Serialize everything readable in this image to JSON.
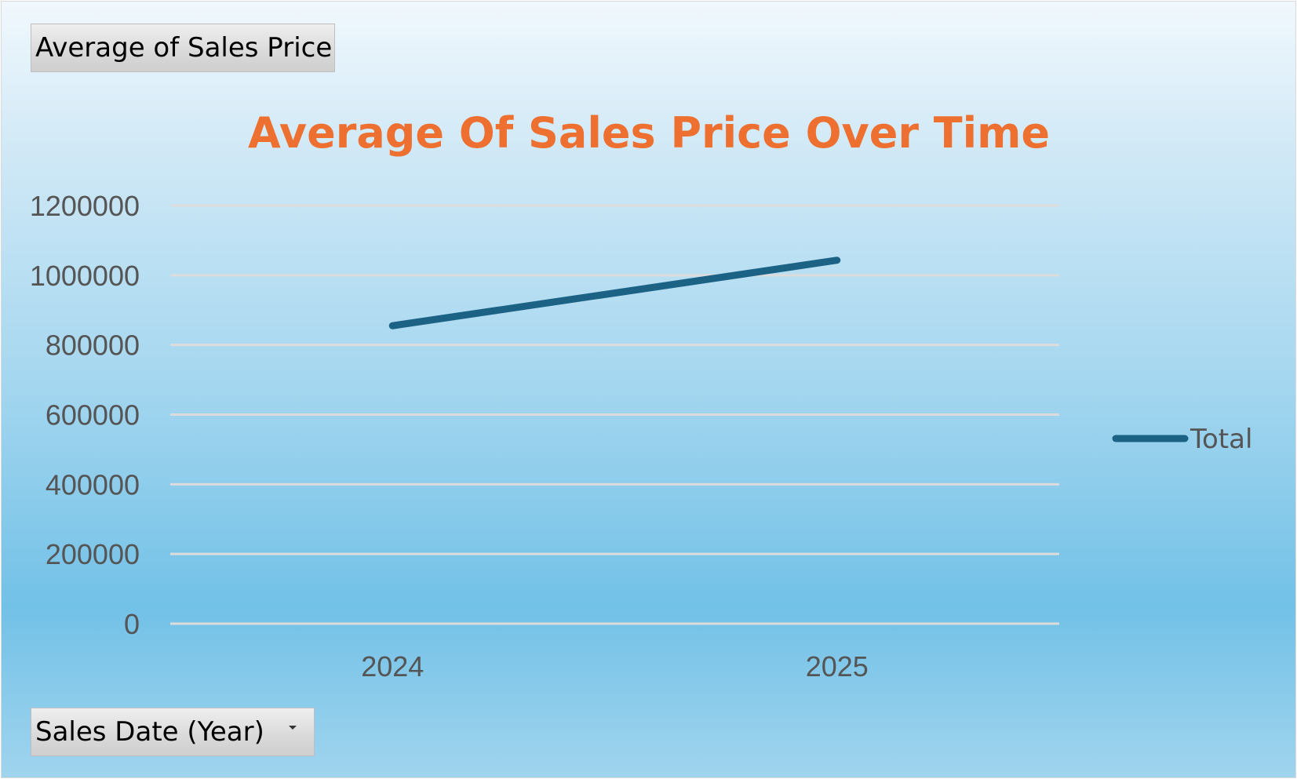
{
  "pivot": {
    "value_field": "Average  of Sales Price",
    "axis_field": "Sales Date (Year)"
  },
  "chart_data": {
    "type": "line",
    "title": "Average Of Sales Price Over Time",
    "xlabel": "",
    "ylabel": "",
    "categories": [
      "2024",
      "2025"
    ],
    "series": [
      {
        "name": "Total",
        "values": [
          855000,
          1043000
        ],
        "color": "#1b6285"
      }
    ],
    "yticks": [
      "0",
      "200000",
      "400000",
      "600000",
      "800000",
      "1000000",
      "1200000"
    ],
    "ylim": [
      0,
      1200000
    ],
    "grid": true,
    "legend_position": "right"
  },
  "colors": {
    "title": "#ed7031",
    "series": "#1b6285",
    "gridline": "#dcdcdc",
    "tick_text": "#555555"
  }
}
